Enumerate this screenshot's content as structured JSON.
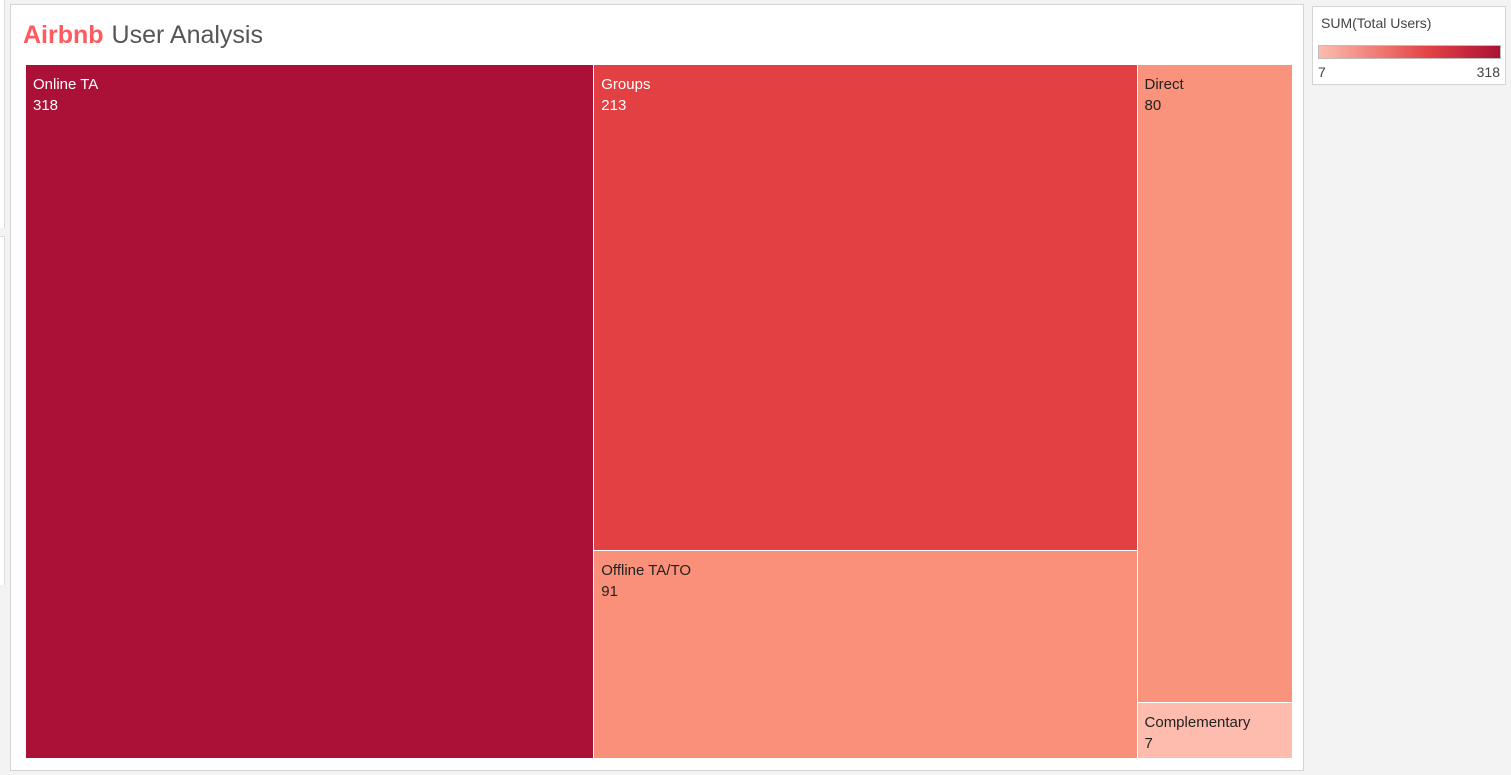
{
  "title": {
    "brand": "Airbnb",
    "rest": "User Analysis",
    "brand_color": "#ff5a5f"
  },
  "legend": {
    "title": "SUM(Total Users)",
    "min_label": "7",
    "max_label": "318",
    "color_low": "#fdbcae",
    "color_mid": "#e34445",
    "color_high": "#ab1136"
  },
  "chart_data": {
    "type": "treemap",
    "measure": "SUM(Total Users)",
    "color_range": [
      7,
      318
    ],
    "items": [
      {
        "label": "Online TA",
        "value": 318,
        "color": "#ab1136",
        "text_color": "#ffffff"
      },
      {
        "label": "Groups",
        "value": 213,
        "color": "#e34044",
        "text_color": "#ffffff"
      },
      {
        "label": "Offline TA/TO",
        "value": 91,
        "color": "#fa9079",
        "text_color": "#222222"
      },
      {
        "label": "Direct",
        "value": 80,
        "color": "#fa937c",
        "text_color": "#222222"
      },
      {
        "label": "Complementary",
        "value": 7,
        "color": "#fdbcae",
        "text_color": "#222222"
      }
    ]
  }
}
